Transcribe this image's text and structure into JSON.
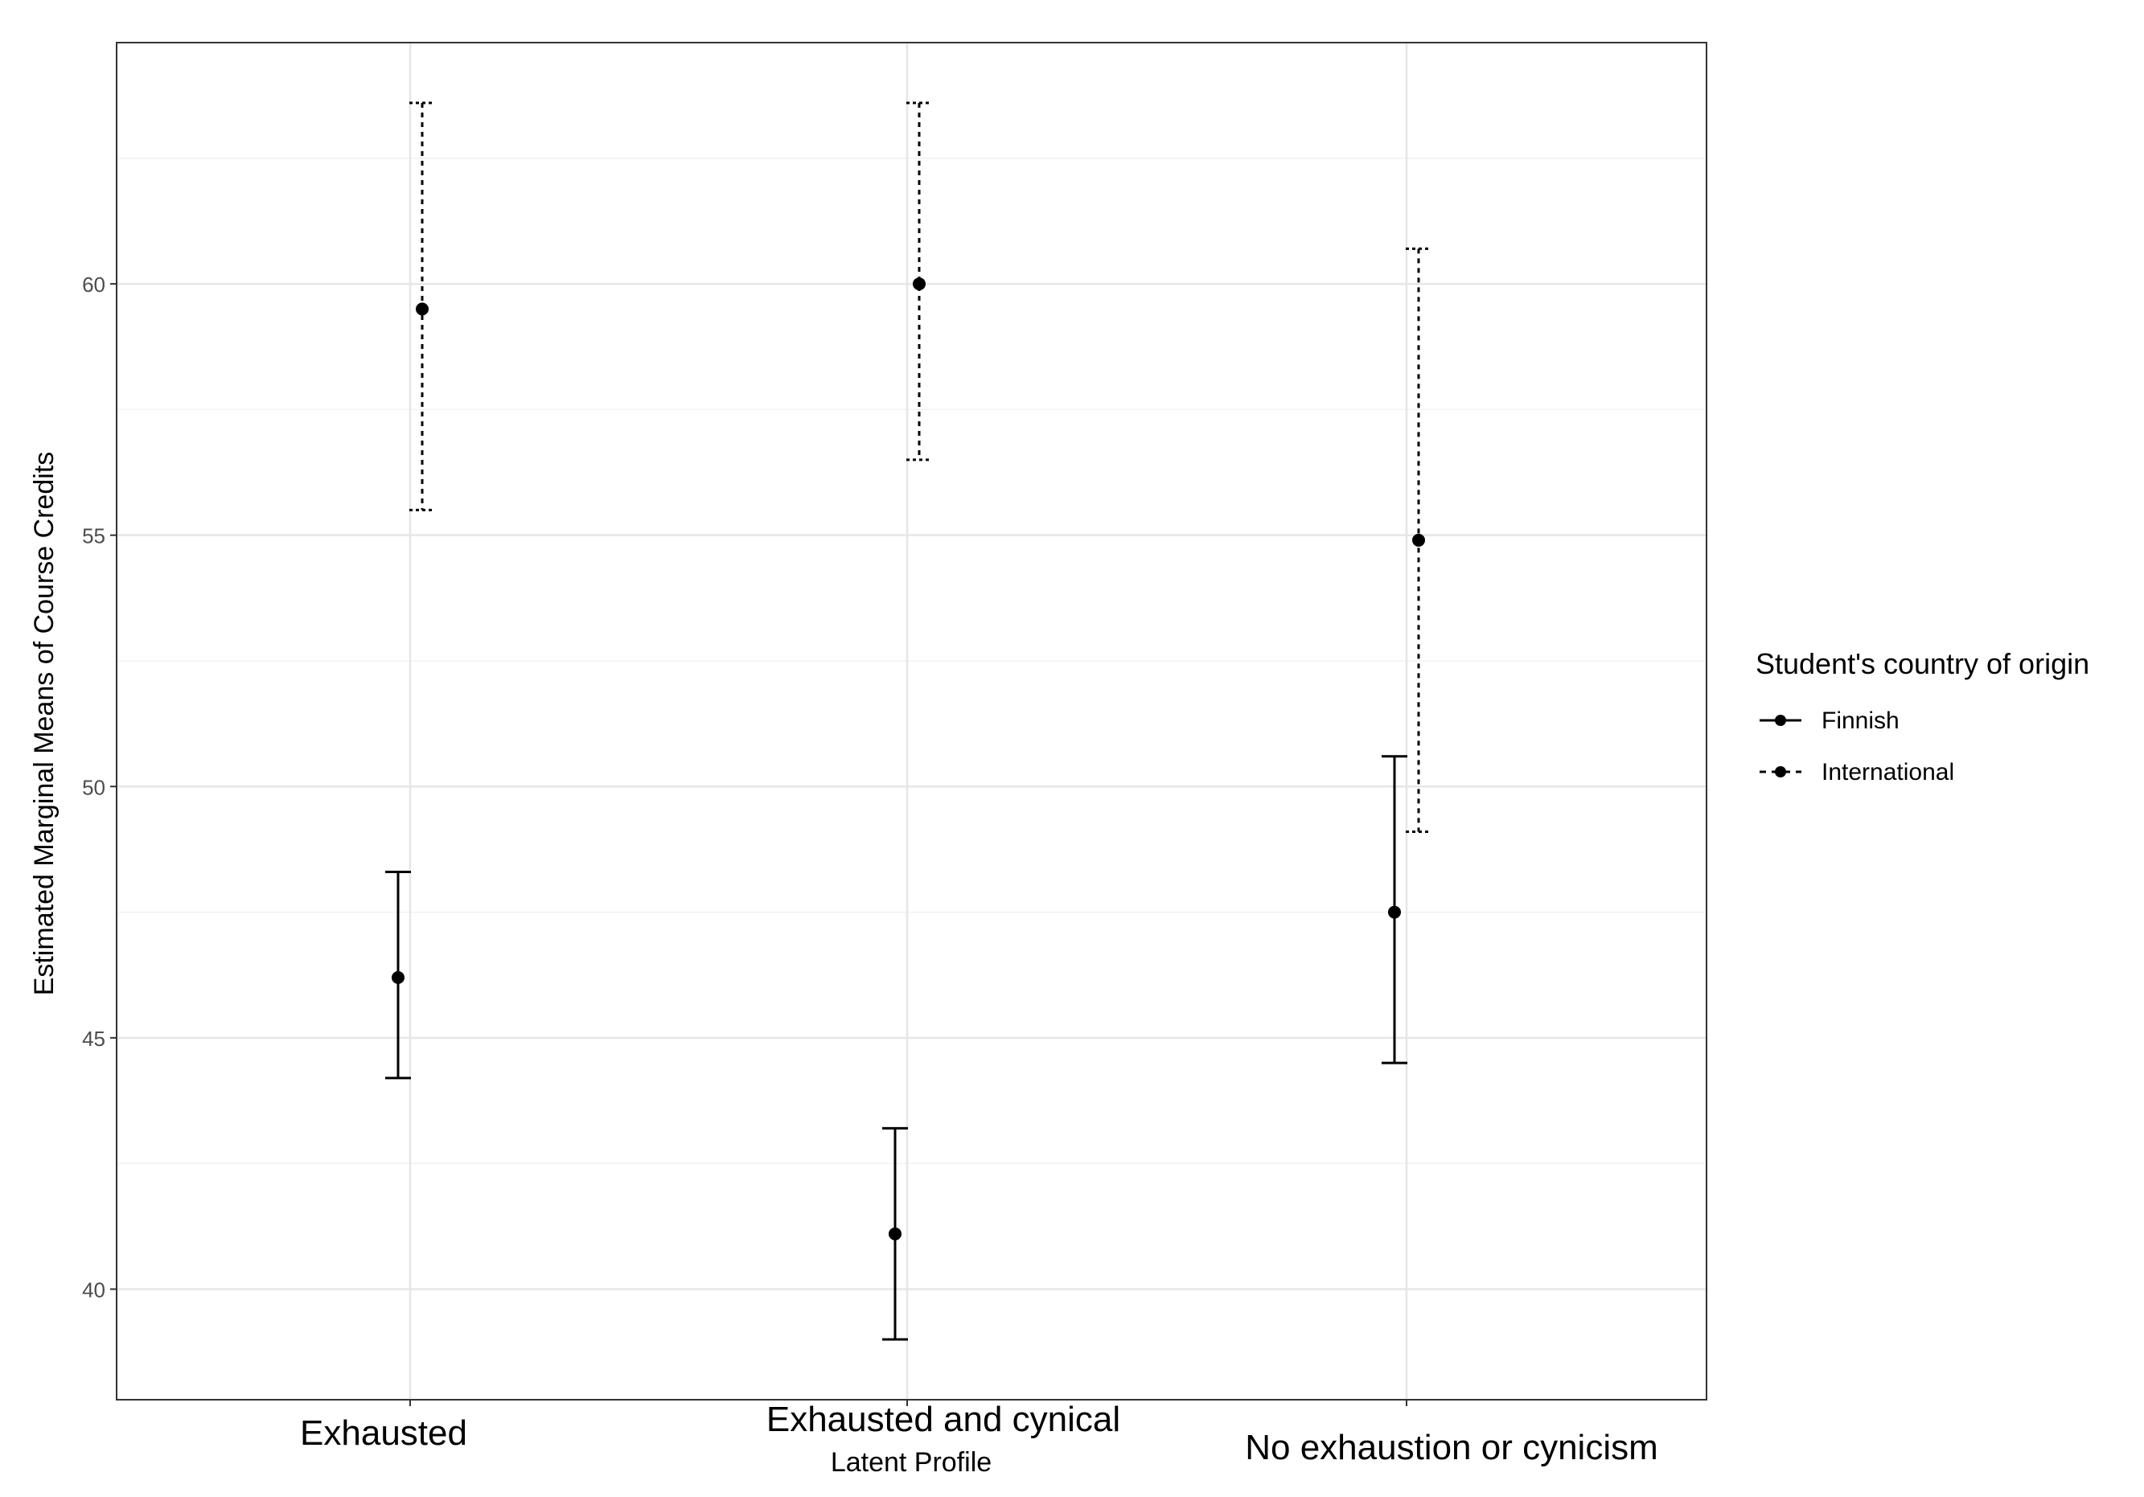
{
  "chart_data": {
    "type": "scatter",
    "subtype": "point-with-errorbars",
    "xlabel": "Latent Profile",
    "ylabel": "Estimated Marginal Means of Course Credits",
    "categories": [
      "Exhausted",
      "Exhausted and cynical",
      "No exhaustion or cynicism"
    ],
    "ylim": [
      37.8,
      64.8
    ],
    "yticks": [
      40,
      45,
      50,
      55,
      60
    ],
    "grid": true,
    "legend": {
      "title": "Student's country of origin",
      "position": "right"
    },
    "series": [
      {
        "name": "Finnish",
        "line_style": "solid",
        "values": [
          46.2,
          41.1,
          47.5
        ],
        "lower": [
          44.2,
          39.0,
          44.5
        ],
        "upper": [
          48.3,
          43.2,
          50.6
        ]
      },
      {
        "name": "International",
        "line_style": "dashed",
        "values": [
          59.5,
          60.0,
          54.9
        ],
        "lower": [
          55.5,
          56.5,
          49.1
        ],
        "upper": [
          63.6,
          63.6,
          60.7
        ]
      }
    ]
  }
}
